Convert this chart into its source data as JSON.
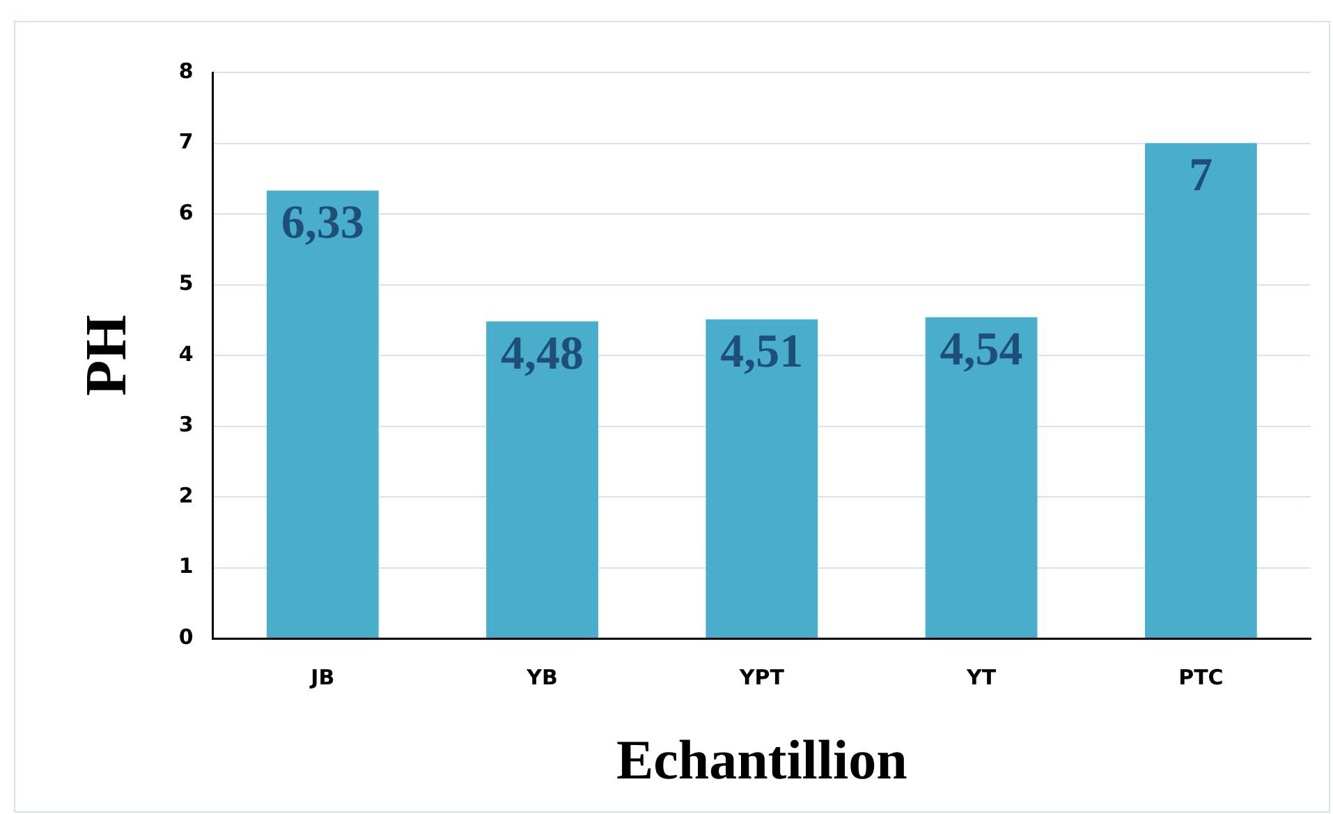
{
  "chart_data": {
    "type": "bar",
    "xlabel": "Echantillion",
    "ylabel": "PH",
    "categories": [
      "JB",
      "YB",
      "YPT",
      "YT",
      "PTC"
    ],
    "values": [
      6.33,
      4.48,
      4.51,
      4.54,
      7
    ],
    "value_labels": [
      "6,33",
      "4,48",
      "4,51",
      "4,54",
      "7"
    ],
    "color": "#48aecb",
    "ylim": [
      0,
      8
    ],
    "yticks": [
      0,
      1,
      2,
      3,
      4,
      5,
      6,
      7,
      8
    ],
    "grid": "y",
    "legend": false
  }
}
